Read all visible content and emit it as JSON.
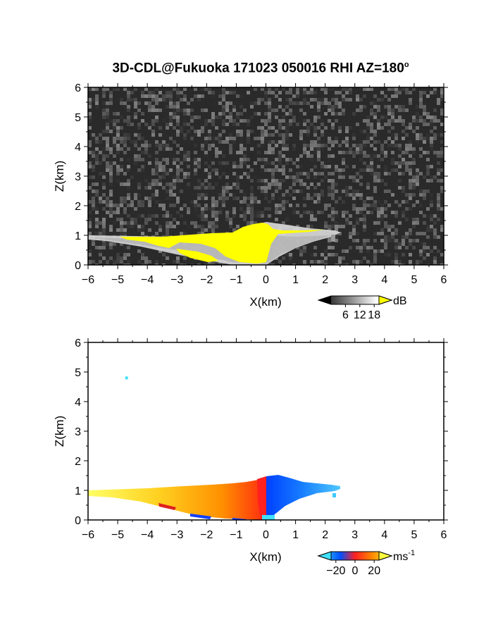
{
  "title_main": "3D-CDL@Fukuoka 171023 050016 RHI AZ=180",
  "title_sup": "o",
  "chart_data": [
    {
      "type": "heatmap",
      "name": "snr",
      "xlabel": "X(km)",
      "ylabel": "Z(km)",
      "xlim": [
        -6,
        6
      ],
      "ylim": [
        0,
        6
      ],
      "xticks": [
        "-6",
        "-5",
        "-4",
        "-3",
        "-2",
        "-1",
        "0",
        "1",
        "2",
        "3",
        "4",
        "5",
        "6"
      ],
      "yticks": [
        "0",
        "1",
        "2",
        "3",
        "4",
        "5",
        "6"
      ],
      "colorbar": {
        "unit": "dB",
        "ticks": [
          "6",
          "12",
          "18"
        ],
        "range": [
          0,
          20
        ]
      },
      "colors": {
        "background_noise": "#2a2a2a",
        "strong_echo": "#ffff00",
        "weak_echo": "#d8d8d8"
      },
      "echo_region": {
        "top_profile": [
          [
            -6,
            1.0
          ],
          [
            -3,
            1.0
          ],
          [
            -2,
            1.05
          ],
          [
            -1,
            1.2
          ],
          [
            0,
            1.5
          ],
          [
            1,
            1.35
          ],
          [
            2,
            1.2
          ],
          [
            2.5,
            1.1
          ]
        ],
        "bottom_profile": [
          [
            -6,
            0.9
          ],
          [
            -3,
            0.55
          ],
          [
            -1,
            0.05
          ],
          [
            0,
            0.0
          ],
          [
            1,
            0.4
          ],
          [
            2.5,
            0.85
          ]
        ]
      }
    },
    {
      "type": "heatmap",
      "name": "radial-velocity",
      "xlabel": "X(km)",
      "ylabel": "Z(km)",
      "xlim": [
        -6,
        6
      ],
      "ylim": [
        0,
        6
      ],
      "xticks": [
        "-6",
        "-5",
        "-4",
        "-3",
        "-2",
        "-1",
        "0",
        "1",
        "2",
        "3",
        "4",
        "5",
        "6"
      ],
      "yticks": [
        "0",
        "1",
        "2",
        "3",
        "4",
        "5",
        "6"
      ],
      "colorbar": {
        "unit": "ms",
        "unit_sup": "-1",
        "ticks": [
          "-20",
          "0",
          "20"
        ],
        "range": [
          -25,
          25
        ]
      },
      "colors": {
        "negative": "#0060ff",
        "zero": "#ff2020",
        "positive": "#ffee00",
        "outlier": "#40e0ff"
      },
      "outlier_point": [
        -4.7,
        4.8
      ]
    }
  ]
}
